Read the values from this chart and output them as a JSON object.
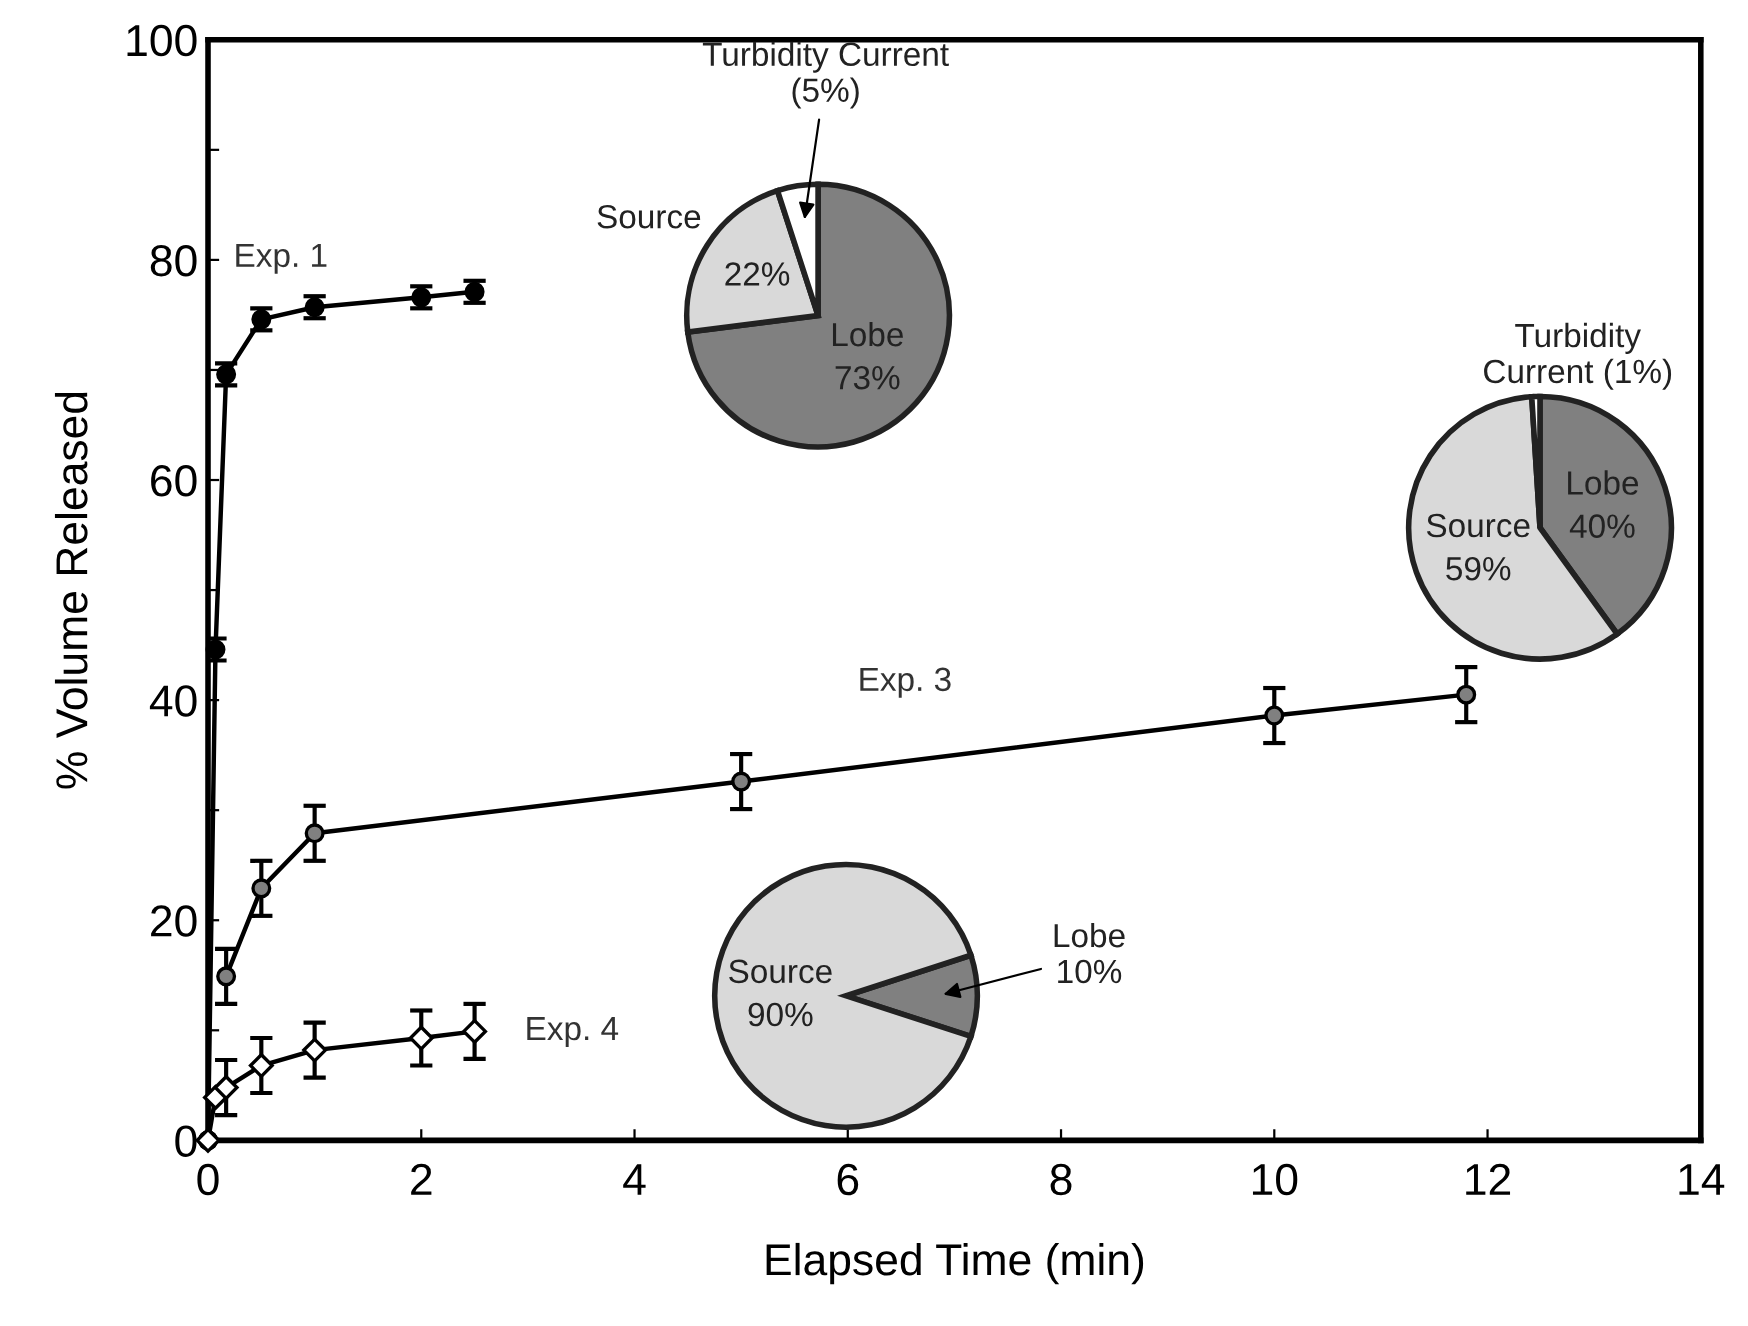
{
  "chart_data": [
    {
      "type": "line",
      "xlabel": "Elapsed Time (min)",
      "ylabel": "% Volume Released",
      "xlim": [
        0,
        14
      ],
      "ylim": [
        0,
        100
      ],
      "xticks": [
        0,
        2,
        4,
        6,
        8,
        10,
        12,
        14
      ],
      "yticks": [
        0,
        {
          "value": 10,
          "label": null
        },
        20,
        {
          "value": 30,
          "label": null
        },
        40,
        {
          "value": 50,
          "label": null
        },
        60,
        {
          "value": 70,
          "label": null
        },
        80,
        {
          "value": 90,
          "label": null
        },
        100
      ],
      "grid": false,
      "legend": false,
      "line_style": "solid",
      "series": [
        {
          "name": "Exp. 1",
          "color": "#000000",
          "marker": "circle",
          "x": [
            0,
            0.07,
            0.17,
            0.5,
            1,
            2,
            2.5
          ],
          "values": [
            0,
            44.6,
            69.6,
            74.6,
            75.7,
            76.6,
            77.1
          ],
          "errors": [
            null,
            1,
            1,
            1,
            1,
            1,
            1
          ]
        },
        {
          "name": "Exp. 3",
          "color": "#808080",
          "marker": "circle",
          "x": [
            0,
            0.07,
            0.17,
            0.5,
            1,
            5,
            10,
            11.8
          ],
          "values": [
            0,
            null,
            14.9,
            22.9,
            27.9,
            32.6,
            38.6,
            40.5
          ],
          "errors": [
            null,
            null,
            2.5,
            2.5,
            2.5,
            2.5,
            2.5,
            2.5
          ]
        },
        {
          "name": "Exp. 4",
          "color": "#ffffff",
          "marker": "diamond",
          "x": [
            0,
            0.07,
            0.17,
            0.5,
            1,
            2,
            2.5
          ],
          "values": [
            0,
            3.9,
            4.8,
            6.8,
            8.2,
            9.3,
            9.9
          ],
          "errors": [
            null,
            null,
            2.5,
            2.5,
            2.5,
            2.5,
            2.5
          ]
        }
      ]
    },
    {
      "type": "pie",
      "categories": [
        "Lobe",
        "Source",
        "Turbidity Current"
      ],
      "values": [
        73,
        22,
        5
      ],
      "colors": [
        "#808080",
        "#d9d9d9",
        "#ffffff"
      ],
      "value_labels": [
        "73%",
        "22%",
        "(5%)"
      ]
    },
    {
      "type": "pie",
      "categories": [
        "Lobe",
        "Source",
        "Turbidity Current"
      ],
      "values": [
        40,
        59,
        1
      ],
      "colors": [
        "#808080",
        "#d9d9d9",
        "#ffffff"
      ],
      "value_labels": [
        "40%",
        "59%",
        "(1%)"
      ]
    },
    {
      "type": "pie",
      "categories": [
        "Lobe",
        "Source"
      ],
      "values": [
        10,
        90
      ],
      "colors": [
        "#808080",
        "#d9d9d9"
      ],
      "value_labels": [
        "10%",
        "90%"
      ]
    }
  ]
}
